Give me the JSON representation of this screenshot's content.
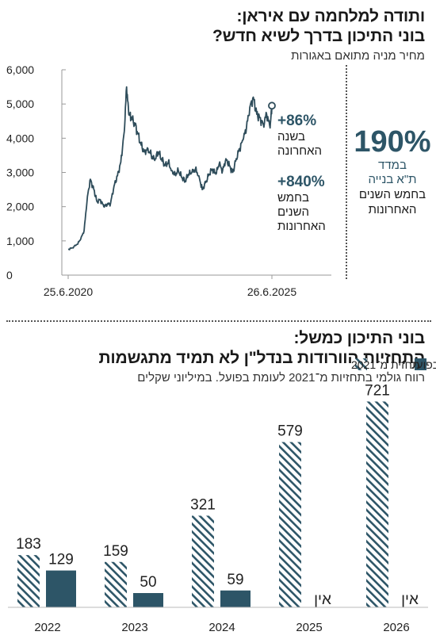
{
  "section1": {
    "title_line1": "ותודה למלחמה עם איראן:",
    "title_line2": "בוני התיכון בדרך לשיא חדש?",
    "subtitle": "מחיר מניה מתואם באגורות",
    "annotations": {
      "year_value": "+86%",
      "year_label_1": "בשנה",
      "year_label_2": "האחרונה",
      "five_value": "+840%",
      "five_label_1": "בחמש",
      "five_label_2": "השנים",
      "five_label_3": "האחרונות"
    },
    "side_stat": {
      "value": "190%",
      "line1": "במדד",
      "line2": "ת\"א בנייה",
      "line3": "בחמש השנים",
      "line4": "האחרונות"
    }
  },
  "section2": {
    "title_line1": "בוני התיכון כמשל:",
    "title_line2": "התחזיות הוורודות בנדל\"ן לא תמיד מתגשמות",
    "subtitle": "רווח גולמי בתחזיות מ־2021 לעומת בפועל. במיליוני שקלים",
    "none_label": "אין"
  },
  "colors": {
    "line": "#2e4c5a",
    "actual_bar": "#2d5567",
    "forecast_hatch": "#2d5567",
    "side_stat": "#2d5567",
    "divider": "#555555"
  },
  "chart_data": [
    {
      "type": "line",
      "x_ticks": [
        "25.6.2020",
        "26.6.2025"
      ],
      "y_ticks": [
        "0",
        "1,000",
        "2,000",
        "3,000",
        "4,000",
        "5,000",
        "6,000"
      ],
      "ylim": [
        0,
        6000
      ],
      "xlim": [
        "2020-06-25",
        "2025-06-26"
      ],
      "series": [
        {
          "x": [
            "2020-06-25",
            "2020-08-01",
            "2020-09-15",
            "2020-10-15",
            "2020-11-15",
            "2020-12-15",
            "2021-01-10",
            "2021-02-10",
            "2021-03-10",
            "2021-04-10",
            "2021-05-10",
            "2021-06-10",
            "2021-07-10",
            "2021-08-10",
            "2021-09-10",
            "2021-10-10",
            "2021-11-10",
            "2021-12-01",
            "2021-12-20",
            "2022-01-10",
            "2022-02-10",
            "2022-03-10",
            "2022-04-10",
            "2022-05-10",
            "2022-06-10",
            "2022-07-10",
            "2022-08-10",
            "2022-09-10",
            "2022-10-10",
            "2022-11-10",
            "2022-12-10",
            "2023-01-10",
            "2023-02-10",
            "2023-03-10",
            "2023-04-10",
            "2023-05-10",
            "2023-06-10",
            "2023-07-10",
            "2023-08-10",
            "2023-09-10",
            "2023-10-10",
            "2023-11-10",
            "2023-12-10",
            "2024-01-10",
            "2024-02-10",
            "2024-03-10",
            "2024-04-10",
            "2024-05-10",
            "2024-06-10",
            "2024-07-10",
            "2024-08-10",
            "2024-09-10",
            "2024-10-10",
            "2024-11-10",
            "2024-12-10",
            "2025-01-10",
            "2025-02-10",
            "2025-03-10",
            "2025-04-10",
            "2025-05-10",
            "2025-06-10",
            "2025-06-26"
          ],
          "y": [
            750,
            800,
            900,
            1050,
            1300,
            2300,
            2800,
            2500,
            2150,
            2200,
            2000,
            2050,
            2100,
            2600,
            2900,
            3300,
            4200,
            5500,
            4700,
            4600,
            4450,
            4150,
            3800,
            3600,
            3700,
            3500,
            3350,
            3600,
            3400,
            3200,
            3300,
            3050,
            2950,
            3050,
            2850,
            2750,
            2950,
            3000,
            3100,
            2900,
            2500,
            2700,
            2950,
            3100,
            2950,
            3250,
            3050,
            3400,
            3200,
            3000,
            3400,
            3700,
            3950,
            4300,
            4900,
            5200,
            4700,
            4600,
            4400,
            4700,
            4300,
            4950
          ]
        }
      ]
    },
    {
      "type": "bar",
      "categories": [
        "2022",
        "2023",
        "2024",
        "2025",
        "2026"
      ],
      "series": [
        {
          "name": "תחזית מ־2021",
          "values": [
            183,
            159,
            321,
            579,
            721
          ]
        },
        {
          "name": "בפועל",
          "values": [
            129,
            50,
            59,
            null,
            null
          ]
        }
      ],
      "legend": "top-right",
      "ylim": [
        0,
        800
      ]
    }
  ]
}
